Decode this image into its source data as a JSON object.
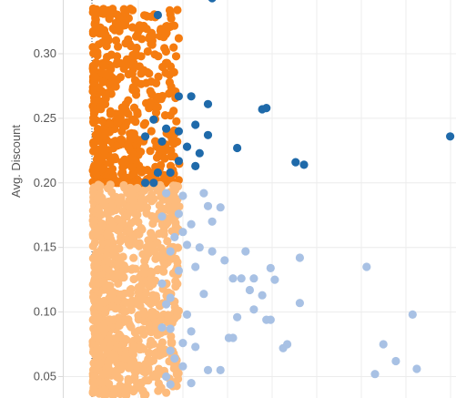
{
  "chart_data": {
    "type": "scatter",
    "title": "",
    "ylabel": "Avg. Discount",
    "xlabel": "",
    "ylim": [
      0.038,
      0.345
    ],
    "y_ticks": [
      {
        "value": 0.3,
        "label": "0.30"
      },
      {
        "value": 0.25,
        "label": "0.25"
      },
      {
        "value": 0.2,
        "label": "0.20"
      },
      {
        "value": 0.15,
        "label": "0.15"
      },
      {
        "value": 0.1,
        "label": "0.10"
      },
      {
        "value": 0.05,
        "label": "0.05"
      }
    ],
    "grid": true,
    "reference_line": "vertical dotted line at left of point cloud",
    "colors": {
      "high_discount_low_x": "#f57c10",
      "high_discount_high_x": "#1f6aaa",
      "low_discount_low_x": "#fdbb7c",
      "low_discount_high_x": "#a8c1e4",
      "grid": "#ececec",
      "axis": "#d9d9d9"
    },
    "series": [
      {
        "color_key": "high_discount_high_x",
        "points": [
          {
            "x": 0.16,
            "y": 0.33
          },
          {
            "x": 0.29,
            "y": 0.343
          },
          {
            "x": 0.13,
            "y": 0.2
          },
          {
            "x": 0.15,
            "y": 0.2
          },
          {
            "x": 0.16,
            "y": 0.208
          },
          {
            "x": 0.13,
            "y": 0.236
          },
          {
            "x": 0.15,
            "y": 0.249
          },
          {
            "x": 0.18,
            "y": 0.242
          },
          {
            "x": 0.17,
            "y": 0.232
          },
          {
            "x": 0.21,
            "y": 0.24
          },
          {
            "x": 0.21,
            "y": 0.267
          },
          {
            "x": 0.24,
            "y": 0.267
          },
          {
            "x": 0.25,
            "y": 0.245
          },
          {
            "x": 0.28,
            "y": 0.261
          },
          {
            "x": 0.26,
            "y": 0.223
          },
          {
            "x": 0.21,
            "y": 0.217
          },
          {
            "x": 0.19,
            "y": 0.208
          },
          {
            "x": 0.25,
            "y": 0.213
          },
          {
            "x": 0.42,
            "y": 0.258
          },
          {
            "x": 0.41,
            "y": 0.257
          },
          {
            "x": 0.35,
            "y": 0.227
          },
          {
            "x": 0.49,
            "y": 0.216
          },
          {
            "x": 0.51,
            "y": 0.214
          },
          {
            "x": 0.86,
            "y": 0.236
          },
          {
            "x": 0.28,
            "y": 0.237
          },
          {
            "x": 0.23,
            "y": 0.228
          }
        ]
      },
      {
        "color_key": "low_discount_high_x",
        "points": [
          {
            "x": 0.18,
            "y": 0.192
          },
          {
            "x": 0.22,
            "y": 0.19
          },
          {
            "x": 0.27,
            "y": 0.192
          },
          {
            "x": 0.28,
            "y": 0.182
          },
          {
            "x": 0.31,
            "y": 0.181
          },
          {
            "x": 0.29,
            "y": 0.17
          },
          {
            "x": 0.24,
            "y": 0.168
          },
          {
            "x": 0.22,
            "y": 0.162
          },
          {
            "x": 0.2,
            "y": 0.158
          },
          {
            "x": 0.23,
            "y": 0.152
          },
          {
            "x": 0.26,
            "y": 0.15
          },
          {
            "x": 0.29,
            "y": 0.147
          },
          {
            "x": 0.37,
            "y": 0.147
          },
          {
            "x": 0.43,
            "y": 0.134
          },
          {
            "x": 0.5,
            "y": 0.142
          },
          {
            "x": 0.66,
            "y": 0.135
          },
          {
            "x": 0.32,
            "y": 0.14
          },
          {
            "x": 0.34,
            "y": 0.126
          },
          {
            "x": 0.36,
            "y": 0.126
          },
          {
            "x": 0.39,
            "y": 0.126
          },
          {
            "x": 0.44,
            "y": 0.125
          },
          {
            "x": 0.41,
            "y": 0.113
          },
          {
            "x": 0.38,
            "y": 0.117
          },
          {
            "x": 0.27,
            "y": 0.114
          },
          {
            "x": 0.19,
            "y": 0.111
          },
          {
            "x": 0.18,
            "y": 0.106
          },
          {
            "x": 0.5,
            "y": 0.107
          },
          {
            "x": 0.42,
            "y": 0.094
          },
          {
            "x": 0.43,
            "y": 0.094
          },
          {
            "x": 0.35,
            "y": 0.096
          },
          {
            "x": 0.19,
            "y": 0.087
          },
          {
            "x": 0.24,
            "y": 0.085
          },
          {
            "x": 0.33,
            "y": 0.08
          },
          {
            "x": 0.34,
            "y": 0.08
          },
          {
            "x": 0.22,
            "y": 0.076
          },
          {
            "x": 0.25,
            "y": 0.073
          },
          {
            "x": 0.19,
            "y": 0.07
          },
          {
            "x": 0.2,
            "y": 0.064
          },
          {
            "x": 0.22,
            "y": 0.058
          },
          {
            "x": 0.28,
            "y": 0.055
          },
          {
            "x": 0.31,
            "y": 0.055
          },
          {
            "x": 0.46,
            "y": 0.072
          },
          {
            "x": 0.47,
            "y": 0.075
          },
          {
            "x": 0.7,
            "y": 0.075
          },
          {
            "x": 0.73,
            "y": 0.062
          },
          {
            "x": 0.68,
            "y": 0.052
          },
          {
            "x": 0.77,
            "y": 0.098
          },
          {
            "x": 0.78,
            "y": 0.056
          },
          {
            "x": 0.39,
            "y": 0.102
          },
          {
            "x": 0.23,
            "y": 0.098
          },
          {
            "x": 0.17,
            "y": 0.088
          },
          {
            "x": 0.17,
            "y": 0.174
          },
          {
            "x": 0.21,
            "y": 0.176
          },
          {
            "x": 0.19,
            "y": 0.147
          },
          {
            "x": 0.25,
            "y": 0.135
          },
          {
            "x": 0.21,
            "y": 0.132
          },
          {
            "x": 0.17,
            "y": 0.122
          },
          {
            "x": 0.18,
            "y": 0.05
          },
          {
            "x": 0.19,
            "y": 0.044
          },
          {
            "x": 0.24,
            "y": 0.045
          }
        ]
      }
    ]
  }
}
